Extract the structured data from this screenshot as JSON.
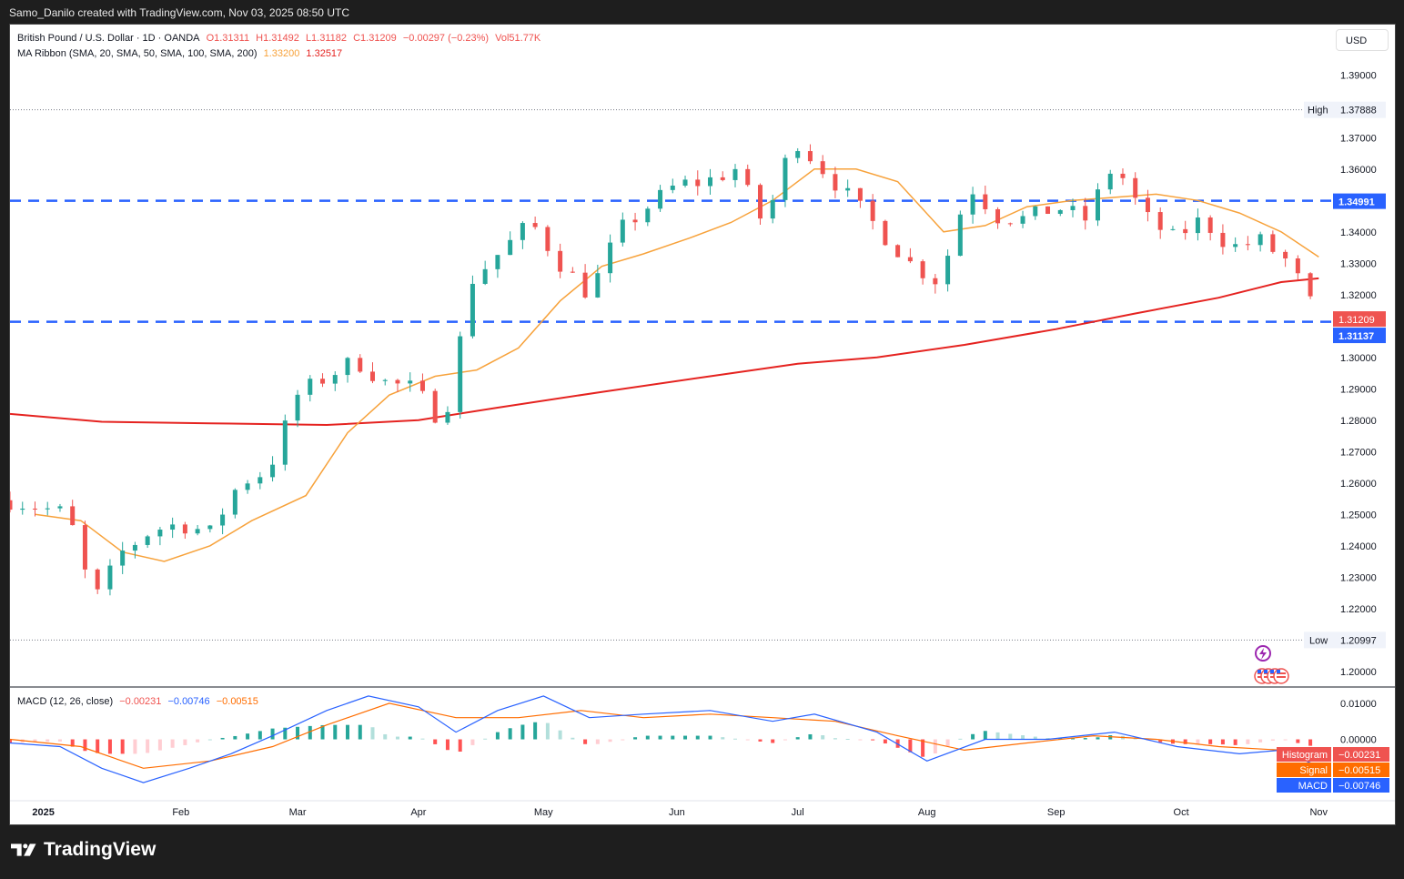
{
  "header": {
    "caption": "Samo_Danilo created with TradingView.com, Nov 03, 2025 08:50 UTC"
  },
  "legend": {
    "symbol": "British Pound / U.S. Dollar · 1D · OANDA",
    "open": "O1.31311",
    "high": "H1.31492",
    "low": "L1.31182",
    "close": "C1.31209",
    "change": "−0.00297 (−0.23%)",
    "volume": "Vol51.77K",
    "ma_name": "MA Ribbon (SMA, 20, SMA, 50, SMA, 100, SMA, 200)",
    "ma1": "1.33200",
    "ma2": "1.32517",
    "macd_name": "MACD (12, 26, close)",
    "macd_hist": "−0.00231",
    "macd_line": "−0.00746",
    "macd_signal": "−0.00515"
  },
  "currency_button": "USD",
  "brand": "TradingView",
  "colors": {
    "up": "#26a69a",
    "down": "#ef5350",
    "sma20": "#f7a23b",
    "sma200": "#e52320",
    "level": "#2962ff",
    "macd": "#2962ff",
    "signal": "#ff6d00"
  },
  "chart_data": {
    "type": "candlestick",
    "title": "British Pound / U.S. Dollar · 1D · OANDA",
    "ylim": [
      1.195,
      1.3985
    ],
    "y_ticks": [
      "1.39000",
      "1.37000",
      "1.36000",
      "1.35000",
      "1.34000",
      "1.33000",
      "1.32000",
      "1.30000",
      "1.29000",
      "1.28000",
      "1.27000",
      "1.26000",
      "1.25000",
      "1.24000",
      "1.23000",
      "1.22000",
      "1.20000"
    ],
    "x_ticks": [
      "2025",
      "Feb",
      "Mar",
      "Apr",
      "May",
      "Jun",
      "Jul",
      "Aug",
      "Sep",
      "Oct",
      "Nov"
    ],
    "x_tick_dates": [
      "2025-01-01",
      "2025-02-03",
      "2025-03-03",
      "2025-04-01",
      "2025-05-01",
      "2025-06-02",
      "2025-07-01",
      "2025-08-01",
      "2025-09-01",
      "2025-10-01",
      "2025-11-03"
    ],
    "x_range": [
      "2024-12-24",
      "2025-11-06"
    ],
    "high_marker": {
      "label": "High",
      "value": "1.37888"
    },
    "low_marker": {
      "label": "Low",
      "value": "1.20997"
    },
    "levels": [
      {
        "value": 1.34991,
        "label": "1.34991"
      },
      {
        "value": 1.31137,
        "label": "1.31137"
      }
    ],
    "last_price": {
      "value": 1.31209,
      "label": "1.31209"
    },
    "closes": [
      [
        "2024-12-24",
        1.2545
      ],
      [
        "2025-01-01",
        1.252
      ],
      [
        "2025-01-07",
        1.25
      ],
      [
        "2025-01-13",
        1.222
      ],
      [
        "2025-01-20",
        1.238
      ],
      [
        "2025-01-27",
        1.245
      ],
      [
        "2025-02-03",
        1.247
      ],
      [
        "2025-02-10",
        1.244
      ],
      [
        "2025-02-17",
        1.26
      ],
      [
        "2025-02-24",
        1.264
      ],
      [
        "2025-03-03",
        1.288
      ],
      [
        "2025-03-10",
        1.294
      ],
      [
        "2025-03-17",
        1.299
      ],
      [
        "2025-03-24",
        1.292
      ],
      [
        "2025-03-31",
        1.29
      ],
      [
        "2025-04-07",
        1.279
      ],
      [
        "2025-04-14",
        1.325
      ],
      [
        "2025-04-21",
        1.334
      ],
      [
        "2025-04-28",
        1.343
      ],
      [
        "2025-05-05",
        1.33
      ],
      [
        "2025-05-12",
        1.32
      ],
      [
        "2025-05-19",
        1.34
      ],
      [
        "2025-05-26",
        1.348
      ],
      [
        "2025-06-02",
        1.355
      ],
      [
        "2025-06-09",
        1.356
      ],
      [
        "2025-06-16",
        1.36
      ],
      [
        "2025-06-23",
        1.342
      ],
      [
        "2025-06-30",
        1.37
      ],
      [
        "2025-07-07",
        1.36
      ],
      [
        "2025-07-14",
        1.35
      ],
      [
        "2025-07-21",
        1.34
      ],
      [
        "2025-07-28",
        1.33
      ],
      [
        "2025-08-04",
        1.324
      ],
      [
        "2025-08-11",
        1.355
      ],
      [
        "2025-08-18",
        1.345
      ],
      [
        "2025-08-25",
        1.344
      ],
      [
        "2025-09-01",
        1.348
      ],
      [
        "2025-09-08",
        1.344
      ],
      [
        "2025-09-15",
        1.362
      ],
      [
        "2025-09-22",
        1.345
      ],
      [
        "2025-09-29",
        1.338
      ],
      [
        "2025-10-06",
        1.344
      ],
      [
        "2025-10-13",
        1.335
      ],
      [
        "2025-10-20",
        1.337
      ],
      [
        "2025-10-27",
        1.33
      ],
      [
        "2025-11-03",
        1.3121
      ]
    ],
    "sma20": [
      [
        "2024-12-30",
        1.25
      ],
      [
        "2025-01-10",
        1.248
      ],
      [
        "2025-01-20",
        1.238
      ],
      [
        "2025-01-30",
        1.235
      ],
      [
        "2025-02-10",
        1.24
      ],
      [
        "2025-02-20",
        1.248
      ],
      [
        "2025-03-05",
        1.256
      ],
      [
        "2025-03-15",
        1.276
      ],
      [
        "2025-03-25",
        1.288
      ],
      [
        "2025-04-05",
        1.294
      ],
      [
        "2025-04-15",
        1.296
      ],
      [
        "2025-04-25",
        1.303
      ],
      [
        "2025-05-05",
        1.318
      ],
      [
        "2025-05-15",
        1.329
      ],
      [
        "2025-05-25",
        1.333
      ],
      [
        "2025-06-05",
        1.338
      ],
      [
        "2025-06-15",
        1.343
      ],
      [
        "2025-06-25",
        1.35
      ],
      [
        "2025-07-05",
        1.36
      ],
      [
        "2025-07-15",
        1.36
      ],
      [
        "2025-07-25",
        1.356
      ],
      [
        "2025-08-05",
        1.34
      ],
      [
        "2025-08-15",
        1.342
      ],
      [
        "2025-08-25",
        1.348
      ],
      [
        "2025-09-05",
        1.35
      ],
      [
        "2025-09-15",
        1.351
      ],
      [
        "2025-09-25",
        1.352
      ],
      [
        "2025-10-05",
        1.35
      ],
      [
        "2025-10-15",
        1.346
      ],
      [
        "2025-10-25",
        1.34
      ],
      [
        "2025-11-03",
        1.332
      ]
    ],
    "sma200": [
      [
        "2024-12-24",
        1.282
      ],
      [
        "2025-01-15",
        1.2795
      ],
      [
        "2025-02-10",
        1.279
      ],
      [
        "2025-03-10",
        1.2785
      ],
      [
        "2025-04-01",
        1.28
      ],
      [
        "2025-04-20",
        1.284
      ],
      [
        "2025-05-15",
        1.289
      ],
      [
        "2025-06-10",
        1.294
      ],
      [
        "2025-07-01",
        1.298
      ],
      [
        "2025-07-20",
        1.3
      ],
      [
        "2025-08-10",
        1.304
      ],
      [
        "2025-09-01",
        1.309
      ],
      [
        "2025-09-20",
        1.314
      ],
      [
        "2025-10-10",
        1.319
      ],
      [
        "2025-10-25",
        1.324
      ],
      [
        "2025-11-03",
        1.3252
      ]
    ],
    "macd_panel": {
      "title": "MACD (12, 26, close)",
      "ylim": [
        -0.016,
        0.014
      ],
      "y_ticks": [
        "0.01000",
        "0.00000"
      ],
      "labels": {
        "histogram": "Histogram",
        "signal": "Signal",
        "macd": "MACD"
      },
      "values": {
        "histogram": "−0.00231",
        "signal": "−0.00515",
        "macd": "−0.00746"
      },
      "macd": [
        [
          "2024-12-24",
          -0.001
        ],
        [
          "2025-01-05",
          -0.002
        ],
        [
          "2025-01-15",
          -0.008
        ],
        [
          "2025-01-25",
          -0.012
        ],
        [
          "2025-02-05",
          -0.008
        ],
        [
          "2025-02-15",
          -0.004
        ],
        [
          "2025-02-25",
          0.001
        ],
        [
          "2025-03-10",
          0.008
        ],
        [
          "2025-03-20",
          0.012
        ],
        [
          "2025-04-01",
          0.009
        ],
        [
          "2025-04-10",
          0.002
        ],
        [
          "2025-04-20",
          0.008
        ],
        [
          "2025-05-01",
          0.012
        ],
        [
          "2025-05-12",
          0.006
        ],
        [
          "2025-05-25",
          0.007
        ],
        [
          "2025-06-10",
          0.008
        ],
        [
          "2025-06-25",
          0.005
        ],
        [
          "2025-07-05",
          0.007
        ],
        [
          "2025-07-20",
          0.002
        ],
        [
          "2025-08-01",
          -0.006
        ],
        [
          "2025-08-15",
          0.0
        ],
        [
          "2025-08-30",
          0.0
        ],
        [
          "2025-09-15",
          0.002
        ],
        [
          "2025-09-30",
          -0.002
        ],
        [
          "2025-10-15",
          -0.004
        ],
        [
          "2025-10-25",
          -0.003
        ],
        [
          "2025-11-03",
          -0.0075
        ]
      ],
      "signal": [
        [
          "2024-12-24",
          0.0
        ],
        [
          "2025-01-10",
          -0.002
        ],
        [
          "2025-01-25",
          -0.008
        ],
        [
          "2025-02-10",
          -0.006
        ],
        [
          "2025-02-25",
          -0.002
        ],
        [
          "2025-03-10",
          0.004
        ],
        [
          "2025-03-25",
          0.01
        ],
        [
          "2025-04-10",
          0.006
        ],
        [
          "2025-04-25",
          0.006
        ],
        [
          "2025-05-10",
          0.008
        ],
        [
          "2025-05-25",
          0.006
        ],
        [
          "2025-06-10",
          0.007
        ],
        [
          "2025-06-25",
          0.006
        ],
        [
          "2025-07-10",
          0.005
        ],
        [
          "2025-07-25",
          0.001
        ],
        [
          "2025-08-10",
          -0.003
        ],
        [
          "2025-08-25",
          -0.001
        ],
        [
          "2025-09-10",
          0.001
        ],
        [
          "2025-09-25",
          0.0
        ],
        [
          "2025-10-10",
          -0.002
        ],
        [
          "2025-10-25",
          -0.003
        ],
        [
          "2025-11-03",
          -0.0052
        ]
      ]
    }
  }
}
